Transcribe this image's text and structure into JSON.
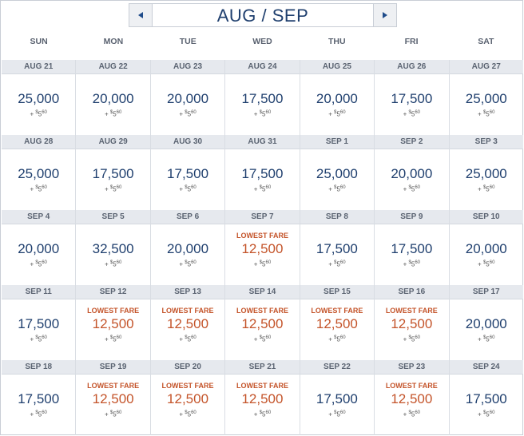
{
  "header": {
    "title": "AUG / SEP"
  },
  "weekdays": [
    "SUN",
    "MON",
    "TUE",
    "WED",
    "THU",
    "FRI",
    "SAT"
  ],
  "tax": {
    "plus": "+",
    "dollar": "$",
    "whole": "5",
    "cents": "60"
  },
  "lowest_label": "LOWEST FARE",
  "weeks": [
    [
      {
        "date": "AUG 21",
        "miles": "25,000",
        "lowest": false
      },
      {
        "date": "AUG 22",
        "miles": "20,000",
        "lowest": false
      },
      {
        "date": "AUG 23",
        "miles": "20,000",
        "lowest": false
      },
      {
        "date": "AUG 24",
        "miles": "17,500",
        "lowest": false
      },
      {
        "date": "AUG 25",
        "miles": "20,000",
        "lowest": false
      },
      {
        "date": "AUG 26",
        "miles": "17,500",
        "lowest": false
      },
      {
        "date": "AUG 27",
        "miles": "25,000",
        "lowest": false
      }
    ],
    [
      {
        "date": "AUG 28",
        "miles": "25,000",
        "lowest": false
      },
      {
        "date": "AUG 29",
        "miles": "17,500",
        "lowest": false
      },
      {
        "date": "AUG 30",
        "miles": "17,500",
        "lowest": false
      },
      {
        "date": "AUG 31",
        "miles": "17,500",
        "lowest": false
      },
      {
        "date": "SEP 1",
        "miles": "25,000",
        "lowest": false
      },
      {
        "date": "SEP 2",
        "miles": "20,000",
        "lowest": false
      },
      {
        "date": "SEP 3",
        "miles": "25,000",
        "lowest": false
      }
    ],
    [
      {
        "date": "SEP 4",
        "miles": "20,000",
        "lowest": false
      },
      {
        "date": "SEP 5",
        "miles": "32,500",
        "lowest": false
      },
      {
        "date": "SEP 6",
        "miles": "20,000",
        "lowest": false
      },
      {
        "date": "SEP 7",
        "miles": "12,500",
        "lowest": true
      },
      {
        "date": "SEP 8",
        "miles": "17,500",
        "lowest": false
      },
      {
        "date": "SEP 9",
        "miles": "17,500",
        "lowest": false
      },
      {
        "date": "SEP 10",
        "miles": "20,000",
        "lowest": false
      }
    ],
    [
      {
        "date": "SEP 11",
        "miles": "17,500",
        "lowest": false
      },
      {
        "date": "SEP 12",
        "miles": "12,500",
        "lowest": true
      },
      {
        "date": "SEP 13",
        "miles": "12,500",
        "lowest": true
      },
      {
        "date": "SEP 14",
        "miles": "12,500",
        "lowest": true
      },
      {
        "date": "SEP 15",
        "miles": "12,500",
        "lowest": true
      },
      {
        "date": "SEP 16",
        "miles": "12,500",
        "lowest": true
      },
      {
        "date": "SEP 17",
        "miles": "20,000",
        "lowest": false
      }
    ],
    [
      {
        "date": "SEP 18",
        "miles": "17,500",
        "lowest": false
      },
      {
        "date": "SEP 19",
        "miles": "12,500",
        "lowest": true
      },
      {
        "date": "SEP 20",
        "miles": "12,500",
        "lowest": true
      },
      {
        "date": "SEP 21",
        "miles": "12,500",
        "lowest": true
      },
      {
        "date": "SEP 22",
        "miles": "17,500",
        "lowest": false
      },
      {
        "date": "SEP 23",
        "miles": "12,500",
        "lowest": true
      },
      {
        "date": "SEP 24",
        "miles": "17,500",
        "lowest": false
      }
    ]
  ],
  "colors": {
    "regular": "#1f3f6e",
    "lowest": "#c4542a",
    "date_bar": "#e6e9ee"
  }
}
